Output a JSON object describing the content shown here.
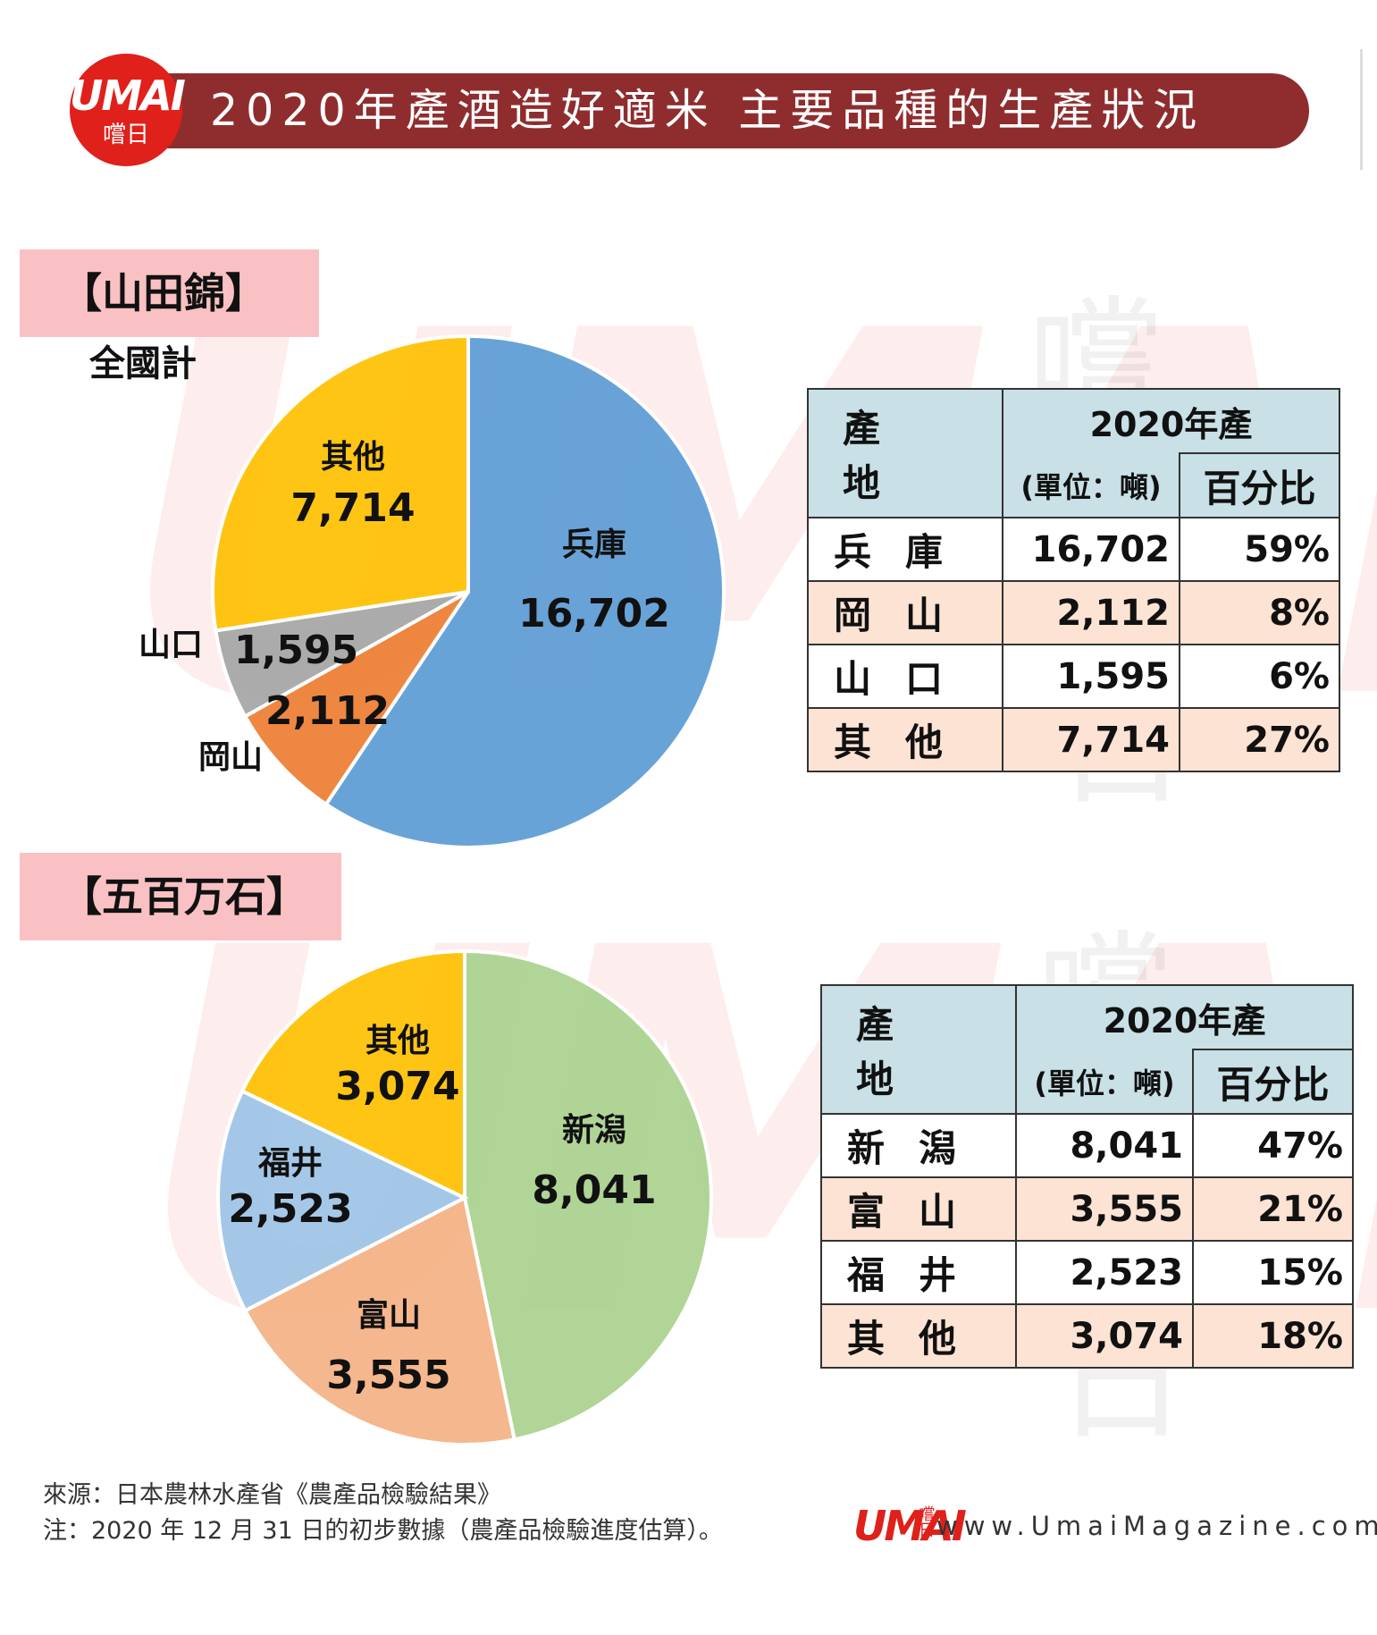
{
  "header": {
    "logo_text": "UMAI",
    "logo_subtext": "嚐日",
    "title": "2020年產酒造好適米 主要品種的生產狀況"
  },
  "colors": {
    "title_bar": "#8f2d2e",
    "section_label_bg": "#f9c1c3",
    "table_header": "#c8e0e6",
    "table_row_alt": "#fde3d3",
    "brand_red": "#e0201b"
  },
  "watermark": {
    "text": "UMAI",
    "char_top": "嚐",
    "char_bottom": "日"
  },
  "sections": [
    {
      "label": "【山田錦】",
      "sublabel": "全國計",
      "table": {
        "col_place": "產 地",
        "col_year": "2020年產",
        "col_unit": "(單位：噸)",
        "col_pct": "百分比",
        "rows": [
          {
            "place": "兵庫",
            "value": "16,702",
            "pct": "59%"
          },
          {
            "place": "岡山",
            "value": "2,112",
            "pct": "8%"
          },
          {
            "place": "山口",
            "value": "1,595",
            "pct": "6%"
          },
          {
            "place": "其他",
            "value": "7,714",
            "pct": "27%"
          }
        ]
      }
    },
    {
      "label": "【五百万石】",
      "table": {
        "col_place": "產 地",
        "col_year": "2020年產",
        "col_unit": "(單位：噸)",
        "col_pct": "百分比",
        "rows": [
          {
            "place": "新潟",
            "value": "8,041",
            "pct": "47%"
          },
          {
            "place": "富山",
            "value": "3,555",
            "pct": "21%"
          },
          {
            "place": "福井",
            "value": "2,523",
            "pct": "15%"
          },
          {
            "place": "其他",
            "value": "3,074",
            "pct": "18%"
          }
        ]
      }
    }
  ],
  "chart_data": [
    {
      "type": "pie",
      "title": "【山田錦】",
      "subtitle": "全國計",
      "categories": [
        "兵庫",
        "岡山",
        "山口",
        "其他"
      ],
      "values": [
        16702,
        2112,
        1595,
        7714
      ],
      "value_labels": [
        "16,702",
        "2,112",
        "1,595",
        "7,714"
      ],
      "colors": [
        "#5b9bd5",
        "#ed7d31",
        "#a5a5a5",
        "#ffc000"
      ],
      "start_angle_deg": 0,
      "direction": "clockwise"
    },
    {
      "type": "pie",
      "title": "【五百万石】",
      "categories": [
        "新潟",
        "富山",
        "福井",
        "其他"
      ],
      "values": [
        8041,
        3555,
        2523,
        3074
      ],
      "value_labels": [
        "8,041",
        "3,555",
        "2,523",
        "3,074"
      ],
      "colors": [
        "#a9d18e",
        "#f4b183",
        "#9dc3e6",
        "#ffc000"
      ],
      "start_angle_deg": 0,
      "direction": "clockwise"
    }
  ],
  "footer": {
    "source": "來源：日本農林水產省《農產品檢驗結果》",
    "note": "注：2020 年 12 月 31 日的初步數據（農產品檢驗進度估算）。",
    "logo_text": "UMAI",
    "logo_subtext": "嚐日",
    "url": "www.UmaiMagazine.com"
  }
}
